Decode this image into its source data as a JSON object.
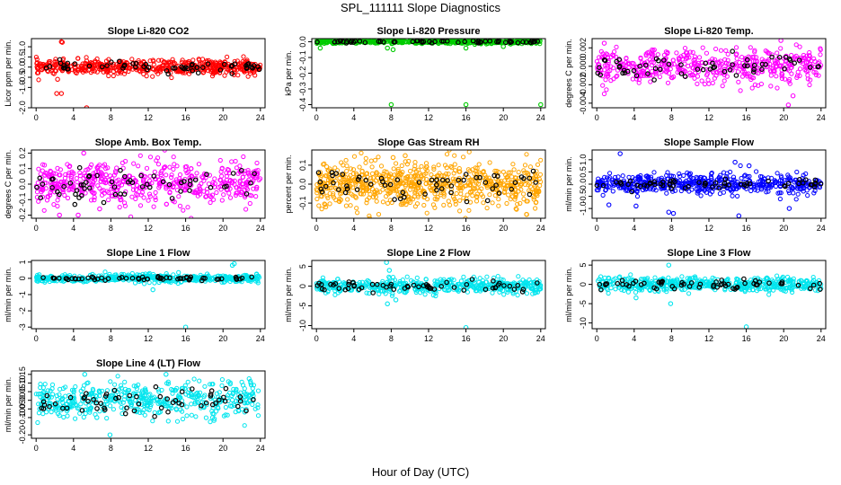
{
  "figure": {
    "title": "SPL_111111  Slope Diagnostics",
    "xlabel": "Hour of Day (UTC)"
  },
  "chart_data": [
    {
      "type": "scatter",
      "title": "Slope Li-820 CO2",
      "ylabel": "Licor ppm per min.",
      "xlim": [
        -0.5,
        24.5
      ],
      "ylim": [
        -2.0,
        1.4
      ],
      "xticks": [
        0,
        4,
        8,
        12,
        16,
        20,
        24
      ],
      "yticks": [
        1.0,
        0.5,
        0.0,
        -0.5,
        -1.0,
        -2.0
      ],
      "ytick_labels": [
        "1.0",
        "0.5",
        "0.0",
        "-0.5",
        "-1.0",
        "-2.0"
      ],
      "color": "#ff0000",
      "center": 0.0,
      "spread": 0.18,
      "black_spread": 0.12,
      "n": 520,
      "outliers": [
        [
          2.7,
          1.25
        ],
        [
          2.8,
          1.22
        ],
        [
          2.3,
          -0.6
        ],
        [
          2.2,
          -1.3
        ],
        [
          2.7,
          -1.3
        ],
        [
          5.4,
          -2.0
        ],
        [
          7.2,
          -2.1
        ]
      ]
    },
    {
      "type": "scatter",
      "title": "Slope Li-820 Pressure",
      "ylabel": "kPa per min.",
      "xlim": [
        -0.5,
        24.5
      ],
      "ylim": [
        -0.42,
        0.02
      ],
      "xticks": [
        0,
        4,
        8,
        12,
        16,
        20,
        24
      ],
      "yticks": [
        0.0,
        -0.1,
        -0.2,
        -0.3,
        -0.4
      ],
      "ytick_labels": [
        "0.0",
        "-0.1",
        "-0.2",
        "-0.3",
        "-0.4"
      ],
      "color": "#00cc00",
      "center": 0.0,
      "spread": 0.006,
      "black_spread": 0.004,
      "n": 520,
      "outliers": [
        [
          8,
          -0.4
        ],
        [
          16,
          -0.4
        ],
        [
          24,
          -0.4
        ],
        [
          7.6,
          -0.04
        ],
        [
          8.2,
          -0.05
        ],
        [
          16,
          -0.04
        ],
        [
          0.4,
          -0.04
        ],
        [
          20,
          -0.03
        ]
      ]
    },
    {
      "type": "scatter",
      "title": "Slope Li-820 Temp.",
      "ylabel": "degrees C per min.",
      "xlim": [
        -0.5,
        24.5
      ],
      "ylim": [
        -0.0045,
        0.003
      ],
      "xticks": [
        0,
        4,
        8,
        12,
        16,
        20,
        24
      ],
      "yticks": [
        0.002,
        0.0,
        -0.002,
        -0.004
      ],
      "ytick_labels": [
        "0.002",
        "0.000",
        "-0.002",
        "-0.004"
      ],
      "color": "#ff00ff",
      "center": 0.0,
      "spread": 0.0009,
      "black_spread": 0.0006,
      "n": 480,
      "outliers": [
        [
          19.7,
          0.0028
        ],
        [
          20.5,
          -0.0042
        ],
        [
          21,
          -0.0032
        ],
        [
          0.8,
          0.0025
        ]
      ]
    },
    {
      "type": "scatter",
      "title": "Slope Amb. Box Temp.",
      "ylabel": "degrees C per min.",
      "xlim": [
        -0.5,
        24.5
      ],
      "ylim": [
        -0.22,
        0.22
      ],
      "xticks": [
        0,
        4,
        8,
        12,
        16,
        20,
        24
      ],
      "yticks": [
        0.2,
        0.1,
        0.0,
        -0.1,
        -0.2
      ],
      "ytick_labels": [
        "0.2",
        "0.1",
        "0.0",
        "-0.1",
        "-0.2"
      ],
      "color": "#ff00ff",
      "center": 0.0,
      "spread": 0.07,
      "black_spread": 0.05,
      "n": 520,
      "outliers": [
        [
          5.1,
          0.2
        ],
        [
          4.5,
          -0.2
        ],
        [
          6.8,
          -0.16
        ],
        [
          2.5,
          -0.2
        ]
      ]
    },
    {
      "type": "scatter",
      "title": "Slope Gas Stream RH",
      "ylabel": "percent per min.",
      "xlim": [
        -0.5,
        24.5
      ],
      "ylim": [
        -0.18,
        0.18
      ],
      "xticks": [
        0,
        4,
        8,
        12,
        16,
        20,
        24
      ],
      "yticks": [
        0.1,
        0.0,
        -0.1
      ],
      "ytick_labels": [
        "0.1",
        "0.0",
        "-0.1"
      ],
      "color": "#ffa500",
      "center": 0.0,
      "spread": 0.06,
      "black_spread": 0.04,
      "n": 700,
      "outliers": [
        [
          9.5,
          0.15
        ],
        [
          22.5,
          -0.16
        ],
        [
          1.0,
          -0.12
        ],
        [
          8.2,
          0.14
        ]
      ]
    },
    {
      "type": "scatter",
      "title": "Slope Sample Flow",
      "ylabel": "ml/min per min.",
      "xlim": [
        -0.5,
        24.5
      ],
      "ylim": [
        -1.4,
        1.4
      ],
      "xticks": [
        0,
        4,
        8,
        12,
        16,
        20,
        24
      ],
      "yticks": [
        1.0,
        0.5,
        0.0,
        -0.5,
        -1.0
      ],
      "ytick_labels": [
        "1.0",
        "0.5",
        "0.0",
        "-0.5",
        "-1.0"
      ],
      "color": "#0000ff",
      "center": 0.0,
      "spread": 0.2,
      "black_spread": 0.1,
      "n": 520,
      "outliers": [
        [
          2.5,
          1.25
        ],
        [
          7.7,
          -1.15
        ],
        [
          8.2,
          -1.2
        ],
        [
          14.8,
          0.9
        ],
        [
          15.2,
          -1.3
        ],
        [
          16.3,
          0.75
        ],
        [
          20.6,
          -1.0
        ],
        [
          4.2,
          -0.9
        ],
        [
          1.3,
          -0.85
        ]
      ]
    },
    {
      "type": "scatter",
      "title": "Slope Line 1 Flow",
      "ylabel": "ml/min per min.",
      "xlim": [
        -0.5,
        24.5
      ],
      "ylim": [
        -3.1,
        1.1
      ],
      "xticks": [
        0,
        4,
        8,
        12,
        16,
        20,
        24
      ],
      "yticks": [
        1,
        0,
        -1,
        -2,
        -3
      ],
      "ytick_labels": [
        "1",
        "0",
        "-1",
        "-2",
        "-3"
      ],
      "color": "#00e5ee",
      "center": 0.0,
      "spread": 0.12,
      "black_spread": 0.06,
      "n": 500,
      "outliers": [
        [
          16,
          -3
        ],
        [
          21,
          0.8
        ],
        [
          21.2,
          0.9
        ],
        [
          12.5,
          -0.7
        ]
      ]
    },
    {
      "type": "scatter",
      "title": "Slope Line 2 Flow",
      "ylabel": "ml/min per min.",
      "xlim": [
        -0.5,
        24.5
      ],
      "ylim": [
        -10.8,
        6.5
      ],
      "xticks": [
        0,
        4,
        8,
        12,
        16,
        20,
        24
      ],
      "yticks": [
        5,
        0,
        -5,
        -10
      ],
      "ytick_labels": [
        "5",
        "0",
        "-5",
        "-10"
      ],
      "color": "#00e5ee",
      "center": 0.0,
      "spread": 0.9,
      "black_spread": 0.7,
      "n": 500,
      "outliers": [
        [
          16,
          -10.5
        ],
        [
          7.5,
          6
        ],
        [
          7.8,
          4
        ],
        [
          7.6,
          -4.5
        ],
        [
          8.5,
          -3.5
        ]
      ]
    },
    {
      "type": "scatter",
      "title": "Slope Line 3 Flow",
      "ylabel": "ml/min per min.",
      "xlim": [
        -0.5,
        24.5
      ],
      "ylim": [
        -11.5,
        6.2
      ],
      "xticks": [
        0,
        4,
        8,
        12,
        16,
        20,
        24
      ],
      "yticks": [
        5,
        0,
        -5,
        -10
      ],
      "ytick_labels": [
        "5",
        "0",
        "-5",
        "-10"
      ],
      "color": "#00e5ee",
      "center": 0.0,
      "spread": 0.9,
      "black_spread": 0.7,
      "n": 500,
      "outliers": [
        [
          16,
          -11
        ],
        [
          7.7,
          5
        ],
        [
          4.2,
          -3.5
        ],
        [
          7.9,
          -5
        ]
      ]
    },
    {
      "type": "scatter",
      "title": "Slope Line 4 (LT) Flow",
      "ylabel": "ml/min per min.",
      "xlim": [
        -0.5,
        24.5
      ],
      "ylim": [
        -0.22,
        0.17
      ],
      "xticks": [
        0,
        4,
        8,
        12,
        16,
        20,
        24
      ],
      "yticks": [
        0.15,
        0.1,
        0.05,
        0.0,
        -0.05,
        -0.1,
        -0.2
      ],
      "ytick_labels": [
        "0.15",
        "0.10",
        "0.05",
        "0.00",
        "-0.05",
        "-0.10",
        "-0.20"
      ],
      "color": "#00e5ee",
      "center": 0.0,
      "spread": 0.05,
      "black_spread": 0.04,
      "n": 480,
      "outliers": [
        [
          7.9,
          -0.2
        ],
        [
          5.2,
          0.15
        ],
        [
          13.9,
          0.15
        ],
        [
          6.5,
          -0.1
        ]
      ]
    }
  ]
}
